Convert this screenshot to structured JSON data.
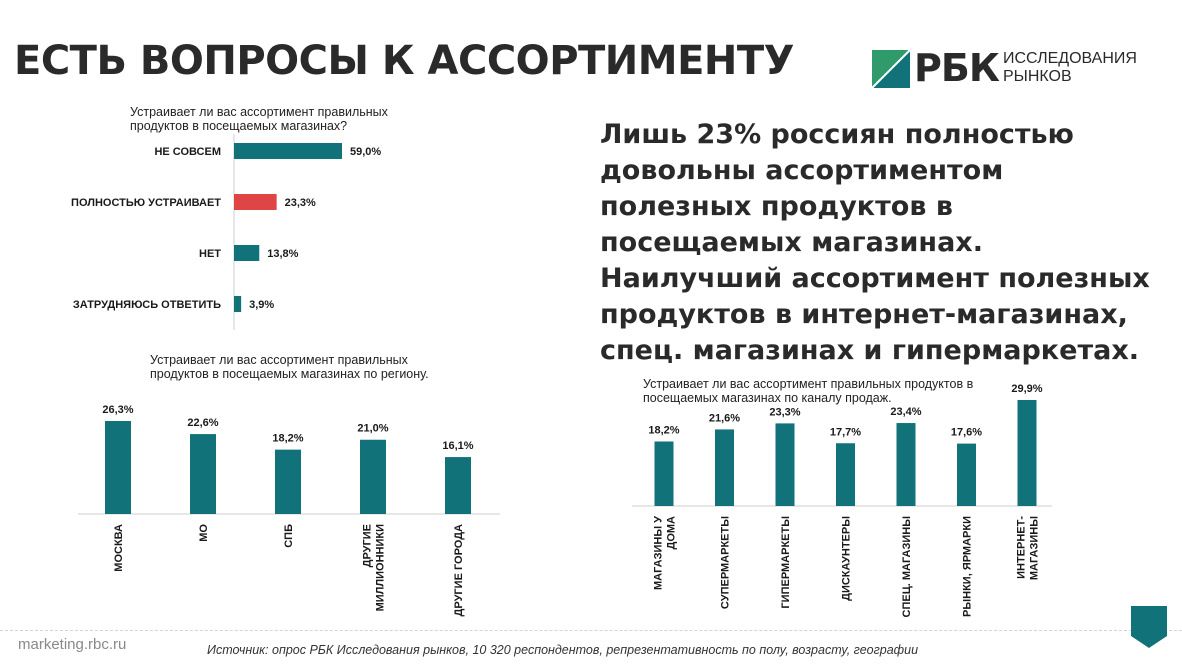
{
  "title": "ЕСТЬ ВОПРОСЫ К АССОРТИМЕНТУ",
  "logo": {
    "brand": "РБК",
    "line1": "ИССЛЕДОВАНИЯ",
    "line2": "РЫНКОВ"
  },
  "lead_text": "Лишь 23% россиян полностью довольны ассортиментом полезных продуктов в посещаемых магазинах. Наилучший ассортимент полезных продуктов в интернет-магазинах, спец. магазинах и гипермаркетах.",
  "footer": {
    "site": "marketing.rbc.ru",
    "source": "Источник: опрос РБК Исследования рынков, 10 320 респондентов, репрезентативность по полу, возрасту, географии"
  },
  "colors": {
    "teal": "#11727a",
    "red": "#e04545",
    "text": "#2a2a2a"
  },
  "chart_data": [
    {
      "type": "bar",
      "orientation": "horizontal",
      "title": "Устраивает ли вас ассортимент правильных продуктов в посещаемых магазинах?",
      "categories": [
        "НЕ СОВСЕМ",
        "ПОЛНОСТЬЮ УСТРАИВАЕТ",
        "НЕТ",
        "ЗАТРУДНЯЮСЬ ОТВЕТИТЬ"
      ],
      "values": [
        59.0,
        23.3,
        13.8,
        3.9
      ],
      "labels": [
        "59,0%",
        "23,3%",
        "13,8%",
        "3,9%"
      ],
      "highlight_index": 1,
      "grid": false
    },
    {
      "type": "bar",
      "orientation": "vertical",
      "title": "Устраивает ли вас ассортимент правильных продуктов в посещаемых магазинах по региону.",
      "categories": [
        "МОСКВА",
        "МО",
        "СПБ",
        "ДРУГИЕ МИЛЛИОННИКИ",
        "ДРУГИЕ ГОРОДА"
      ],
      "values": [
        26.3,
        22.6,
        18.2,
        21.0,
        16.1
      ],
      "labels": [
        "26,3%",
        "22,6%",
        "18,2%",
        "21,0%",
        "16,1%"
      ],
      "grid": false
    },
    {
      "type": "bar",
      "orientation": "vertical",
      "title": "Устраивает ли вас ассортимент правильных продуктов в посещаемых магазинах по каналу продаж.",
      "categories": [
        "МАГАЗИНЫ У ДОМА",
        "СУПЕРМАРКЕТЫ",
        "ГИПЕРМАРКЕТЫ",
        "ДИСКАУНТЕРЫ",
        "СПЕЦ. МАГАЗИНЫ",
        "РЫНКИ, ЯРМАРКИ",
        "ИНТЕРНЕТ-МАГАЗИНЫ"
      ],
      "values": [
        18.2,
        21.6,
        23.3,
        17.7,
        23.4,
        17.6,
        29.9
      ],
      "labels": [
        "18,2%",
        "21,6%",
        "23,3%",
        "17,7%",
        "23,4%",
        "17,6%",
        "29,9%"
      ],
      "grid": false
    }
  ]
}
